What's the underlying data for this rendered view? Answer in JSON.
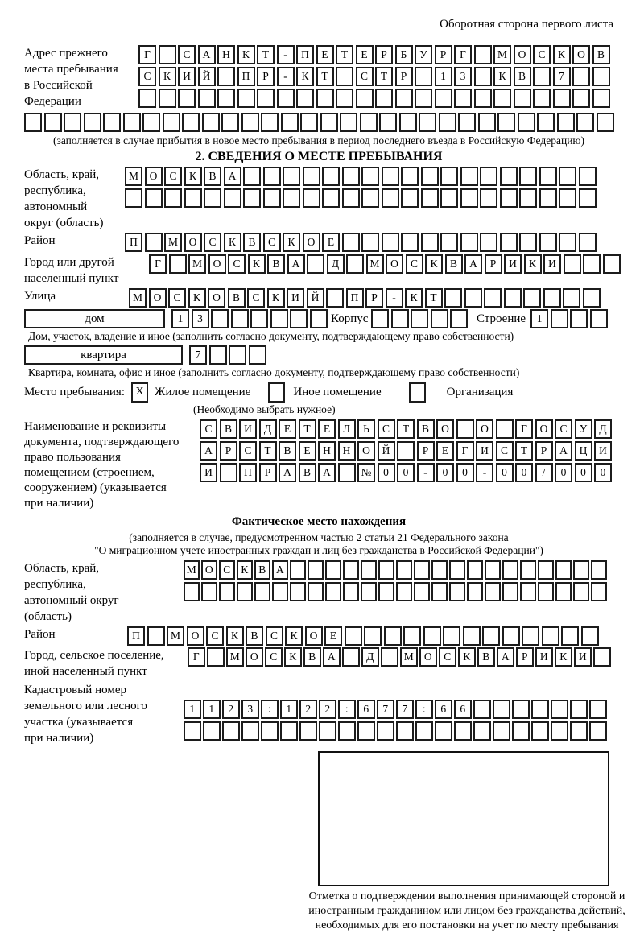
{
  "colors": {
    "ink": "#000000",
    "box_border": "#1c1c1c",
    "background": "#ffffff"
  },
  "header": {
    "note": "Оборотная сторона первого листа"
  },
  "prev_address": {
    "label": "Адрес прежнего\nместа пребывания\nв Российской\nФедерации",
    "row1": "Г САНКТ-ПЕТЕРБУРГ МОСКОВ",
    "row2": "СКИЙ ПР-КТ СТР 13 КВ 7  ",
    "row3": "                        ",
    "row4": "                              ",
    "caption": "(заполняется в случае прибытия в новое место пребывания в период последнего въезда в Российскую Федерацию)"
  },
  "section2": {
    "title": "2. СВЕДЕНИЯ О МЕСТЕ ПРЕБЫВАНИЯ",
    "region": {
      "label": "Область, край,\nреспублика,\nавтономный\nокруг (область)",
      "row1": "МОСКВА                  ",
      "row2": "                        "
    },
    "district": {
      "label": "Район",
      "row": "П МОСКВСКОЕ             "
    },
    "city": {
      "label": "Город или другой\nнаселенный пункт",
      "row": "Г МОСКВА Д МОСКВАРИКИ   "
    },
    "street": {
      "label": "Улица",
      "row": "МОСКОВСКИЙ ПР-КТ        "
    },
    "house": {
      "box_label": "дом",
      "cells": "13      ",
      "korpus_label": "Корпус",
      "korpus_cells": "     ",
      "stroenie_label": "Строение",
      "stroenie_cells": "1   ",
      "caption": "Дом, участок, владение и иное (заполнить согласно документу, подтверждающему право собственности)"
    },
    "apartment": {
      "box_label": "квартира",
      "cells": "7   ",
      "caption": "Квартира, комната, офис и иное (заполнить согласно документу, подтверждающему право собственности)"
    },
    "stay_type": {
      "label": "Место пребывания:",
      "options": [
        {
          "value": "X",
          "label": "Жилое помещение"
        },
        {
          "value": "",
          "label": "Иное помещение"
        },
        {
          "value": "",
          "label": "Организация"
        }
      ],
      "note": "(Необходимо выбрать нужное)"
    },
    "document": {
      "label": "Наименование и реквизиты\nдокумента, подтверждающего\nправо пользования\nпомещением (строением,\nсооружением) (указывается\nпри наличии)",
      "row1": "СВИДЕТЕЛЬСТВО О ГОСУД",
      "row2": "АРСТВЕННОЙ РЕГИСТРАЦИ",
      "row3": "И ПРАВА №00-00-00/000"
    }
  },
  "actual_location": {
    "title": "Фактическое место нахождения",
    "caption1": "(заполняется в случае, предусмотренном частью 2 статьи 21 Федерального закона",
    "caption2": "\"О миграционном учете иностранных граждан и лиц без гражданства в Российской Федерации\")",
    "region": {
      "label": "Область, край,\nреспублика,\nавтономный округ\n(область)",
      "row1": "МОСКВА                  ",
      "row2": "                        "
    },
    "district": {
      "label": "Район",
      "row": "П МОСКВСКОЕ             "
    },
    "city": {
      "label": "Город, сельское поселение,\nиной населенный пункт",
      "row": "Г МОСКВА Д МОСКВАРИКИ "
    },
    "cadastre": {
      "label": "Кадастровый номер\nземельного или лесного\nучастка (указывается\nпри наличии)",
      "row1": "1123:122:677:66       ",
      "row2": "                      "
    }
  },
  "stamp": {
    "caption": "Отметка о подтверждении выполнения принимающей стороной и иностранным гражданином или лицом без гражданства действий, необходимых для его постановки на учет по месту пребывания"
  }
}
